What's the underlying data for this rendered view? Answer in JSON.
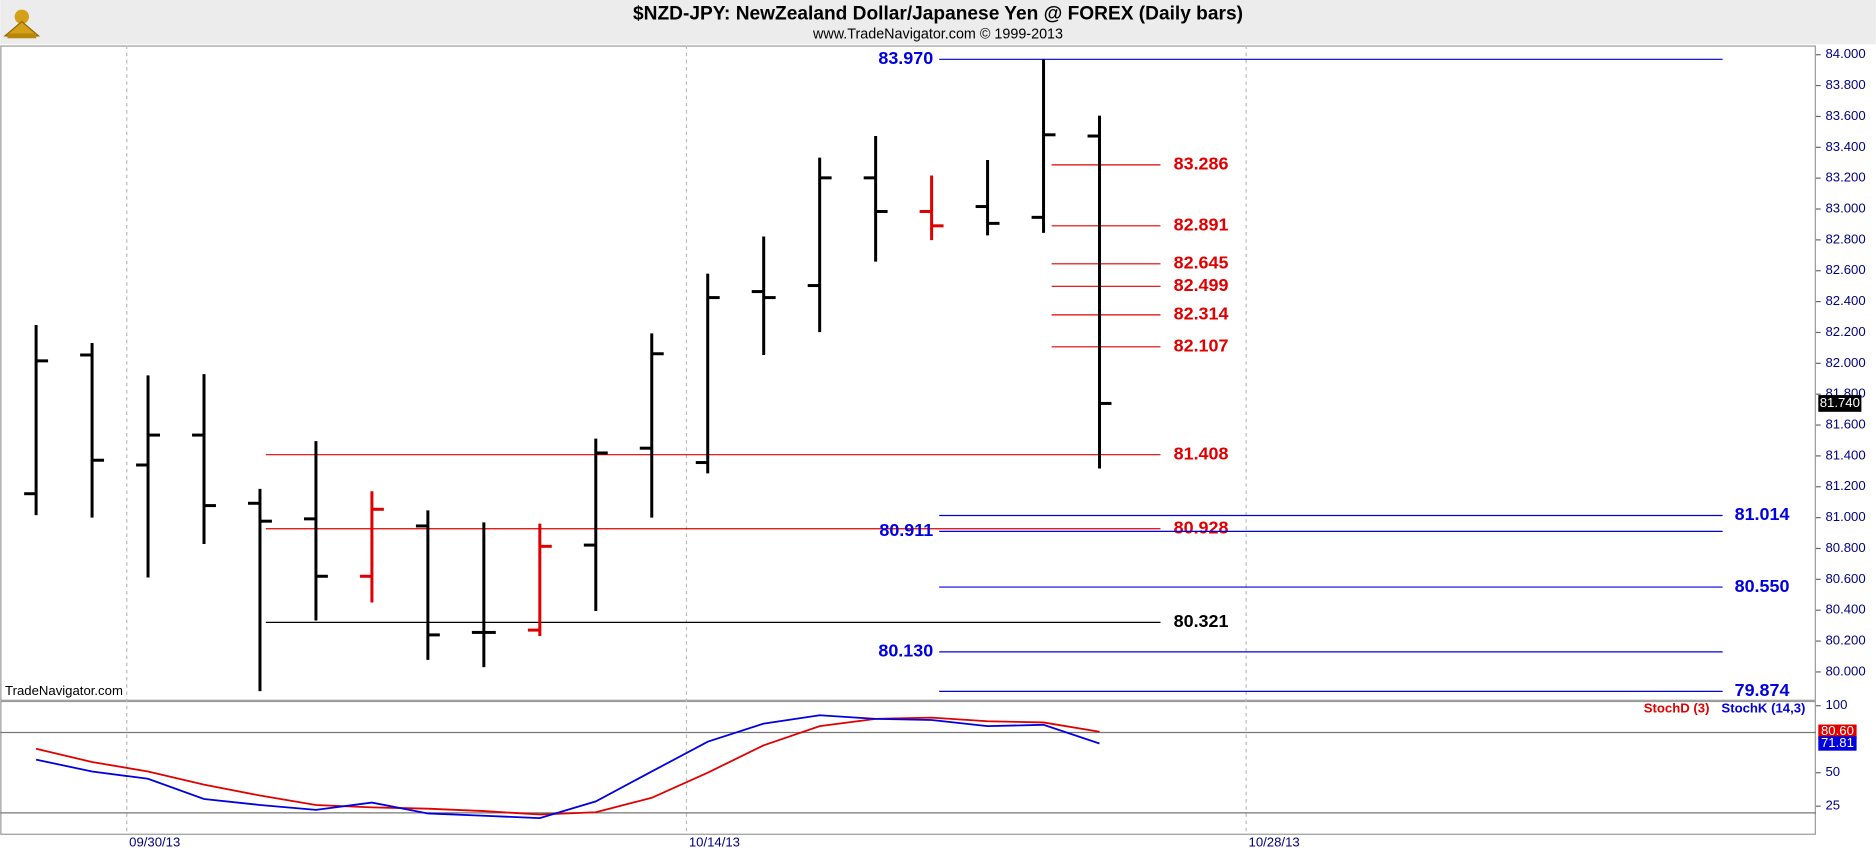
{
  "title": "$NZD-JPY:  NewZealand Dollar/Japanese Yen @ FOREX  (Daily bars)",
  "subtitle": "www.TradeNavigator.com © 1999-2013",
  "watermark": "TradeNavigator.com",
  "chart_data": [
    {
      "type": "ohlc",
      "x": [
        0,
        1,
        2,
        3,
        4,
        5,
        6,
        7,
        8,
        9,
        10,
        11,
        12,
        13,
        14,
        15,
        16,
        17,
        18,
        19
      ],
      "open": [
        81.155,
        82.054,
        81.341,
        81.535,
        81.093,
        80.992,
        80.62,
        80.946,
        80.256,
        80.271,
        80.822,
        81.45,
        81.357,
        82.465,
        82.504,
        83.202,
        82.984,
        83.016,
        82.946,
        83.473
      ],
      "high": [
        82.248,
        82.132,
        81.922,
        81.93,
        81.186,
        81.496,
        81.171,
        81.047,
        80.969,
        80.961,
        81.512,
        82.194,
        82.581,
        82.822,
        83.333,
        83.473,
        83.217,
        83.318,
        83.969,
        83.605
      ],
      "low": [
        81.016,
        81.0,
        80.612,
        80.829,
        79.876,
        80.333,
        80.45,
        80.078,
        80.031,
        80.233,
        80.395,
        81.0,
        81.287,
        82.054,
        82.202,
        82.659,
        82.798,
        82.829,
        82.845,
        81.318
      ],
      "close": [
        82.016,
        81.372,
        81.535,
        81.078,
        80.977,
        80.62,
        81.054,
        80.24,
        80.256,
        80.814,
        81.419,
        82.062,
        82.426,
        82.426,
        83.202,
        82.984,
        82.891,
        82.907,
        83.481,
        81.74
      ],
      "colors": [
        "#000000",
        "#000000",
        "#000000",
        "#000000",
        "#000000",
        "#000000",
        "#e00000",
        "#000000",
        "#000000",
        "#e00000",
        "#000000",
        "#000000",
        "#000000",
        "#000000",
        "#000000",
        "#000000",
        "#e00000",
        "#000000",
        "#000000",
        "#000000"
      ],
      "xlim": [
        -0.64,
        31.8
      ],
      "xticks": [
        {
          "value": 1.62,
          "label": "09/30/13"
        },
        {
          "value": 11.62,
          "label": "10/14/13"
        },
        {
          "value": 21.62,
          "label": "10/28/13"
        }
      ],
      "ylim": [
        79.82,
        84.06
      ],
      "yticks": [
        {
          "value": 80,
          "label": "80.000"
        },
        {
          "value": 80.2,
          "label": "80.200"
        },
        {
          "value": 80.4,
          "label": "80.400"
        },
        {
          "value": 80.6,
          "label": "80.600"
        },
        {
          "value": 80.8,
          "label": "80.800"
        },
        {
          "value": 81,
          "label": "81.000"
        },
        {
          "value": 81.2,
          "label": "81.200"
        },
        {
          "value": 81.4,
          "label": "81.400"
        },
        {
          "value": 81.6,
          "label": "81.600"
        },
        {
          "value": 81.8,
          "label": "81.800"
        },
        {
          "value": 82,
          "label": "82.000"
        },
        {
          "value": 82.2,
          "label": "82.200"
        },
        {
          "value": 82.4,
          "label": "82.400"
        },
        {
          "value": 82.6,
          "label": "82.600"
        },
        {
          "value": 82.8,
          "label": "82.800"
        },
        {
          "value": 83,
          "label": "83.000"
        },
        {
          "value": 83.2,
          "label": "83.200"
        },
        {
          "value": 83.4,
          "label": "83.400"
        },
        {
          "value": 83.6,
          "label": "83.600"
        },
        {
          "value": 83.8,
          "label": "83.800"
        },
        {
          "value": 84,
          "label": "84.000"
        }
      ],
      "last_price": {
        "value": 81.74,
        "label": "81.740"
      },
      "fib_levels": [
        {
          "value": 83.286,
          "label": "83.286",
          "color": "#e00000"
        },
        {
          "value": 82.891,
          "label": "82.891",
          "color": "#e00000"
        },
        {
          "value": 82.645,
          "label": "82.645",
          "color": "#e00000"
        },
        {
          "value": 82.499,
          "label": "82.499",
          "color": "#e00000"
        },
        {
          "value": 82.314,
          "label": "82.314",
          "color": "#e00000"
        },
        {
          "value": 82.107,
          "label": "82.107",
          "color": "#e00000"
        }
      ],
      "long_levels": [
        {
          "value": 81.408,
          "label": "81.408",
          "color": "#e00000"
        },
        {
          "value": 80.928,
          "label": "80.928",
          "color": "#e00000"
        },
        {
          "value": 80.321,
          "label": "80.321",
          "color": "#000000"
        }
      ],
      "blue_levels_left": [
        {
          "value": 83.97,
          "label": "83.970",
          "color": "#0000e0"
        },
        {
          "value": 80.911,
          "label": "80.911",
          "color": "#0000e0"
        },
        {
          "value": 80.13,
          "label": "80.130",
          "color": "#0000e0"
        }
      ],
      "blue_levels_right": [
        {
          "value": 81.014,
          "label": "81.014",
          "color": "#0000e0"
        },
        {
          "value": 80.55,
          "label": "80.550",
          "color": "#0000e0"
        },
        {
          "value": 79.874,
          "label": "79.874",
          "color": "#0000e0"
        }
      ]
    },
    {
      "type": "line",
      "x": [
        0,
        1,
        2,
        3,
        4,
        5,
        6,
        7,
        8,
        9,
        10,
        11,
        12,
        13,
        14,
        15,
        16,
        17,
        18,
        19
      ],
      "xlim": [
        -0.64,
        31.8
      ],
      "series": [
        {
          "name": "StochD (3)",
          "color": "#e00000",
          "values": [
            67.9,
            58.0,
            50.9,
            41.1,
            33.0,
            25.9,
            24.1,
            23.2,
            21.4,
            18.75,
            20.5,
            31.25,
            50.0,
            70.5,
            84.8,
            90.2,
            91.1,
            88.4,
            87.5,
            80.6
          ]
        },
        {
          "name": "StochK (14,3)",
          "color": "#0000e0",
          "values": [
            59.8,
            50.9,
            45.5,
            30.4,
            25.9,
            22.3,
            27.7,
            19.6,
            17.9,
            16.1,
            28.6,
            50.9,
            73.2,
            86.6,
            92.9,
            90.2,
            89.3,
            84.8,
            85.7,
            71.81
          ]
        }
      ],
      "ylim": [
        4.5,
        103.6
      ],
      "yticks": [
        25,
        50,
        100
      ],
      "hlines": [
        20,
        80
      ],
      "last_values": [
        {
          "value": 80.6,
          "label": "80.60"
        },
        {
          "value": 71.81,
          "label": "71.81"
        }
      ]
    }
  ]
}
